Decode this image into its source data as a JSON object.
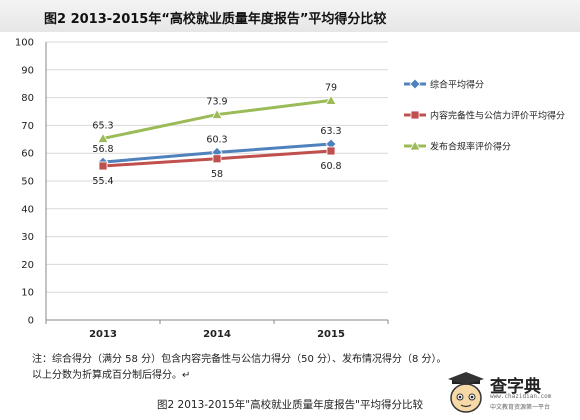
{
  "header": {
    "title": "图2   2013-2015年“高校就业质量年度报告”平均得分比较"
  },
  "chart_data": {
    "type": "line",
    "categories": [
      "2013",
      "2014",
      "2015"
    ],
    "ylim": [
      0,
      100
    ],
    "yticks": [
      0,
      10,
      20,
      30,
      40,
      50,
      60,
      70,
      80,
      90,
      100
    ],
    "grid": true,
    "legend_position": "right",
    "series": [
      {
        "name": "综合平均得分",
        "color": "#4f81bd",
        "marker": "diamond",
        "values": [
          56.8,
          60.3,
          63.3
        ],
        "labels": [
          "56.8",
          "60.3",
          "63.3"
        ]
      },
      {
        "name": "内容完备性与公信力评价平均得分",
        "color": "#c0504d",
        "marker": "square",
        "values": [
          55.4,
          58,
          60.8
        ],
        "labels": [
          "55.4",
          "58",
          "60.8"
        ]
      },
      {
        "name": "发布合规率评价得分",
        "color": "#9bbb59",
        "marker": "triangle",
        "values": [
          65.3,
          73.9,
          79
        ],
        "labels": [
          "65.3",
          "73.9",
          "79"
        ]
      }
    ]
  },
  "note": {
    "line1": "注：综合得分（满分 58 分）包含内容完备性与公信力得分（50 分）、发布情况得分（8 分）。",
    "line2": "    以上分数为折算成百分制后得分。↵"
  },
  "caption": "图2 2013-2015年\"高校就业质量年度报告\"平均得分比较",
  "logo": {
    "name": "查字典",
    "url": "www.chazidian.com",
    "tagline": "中文教育资源第一平台"
  }
}
